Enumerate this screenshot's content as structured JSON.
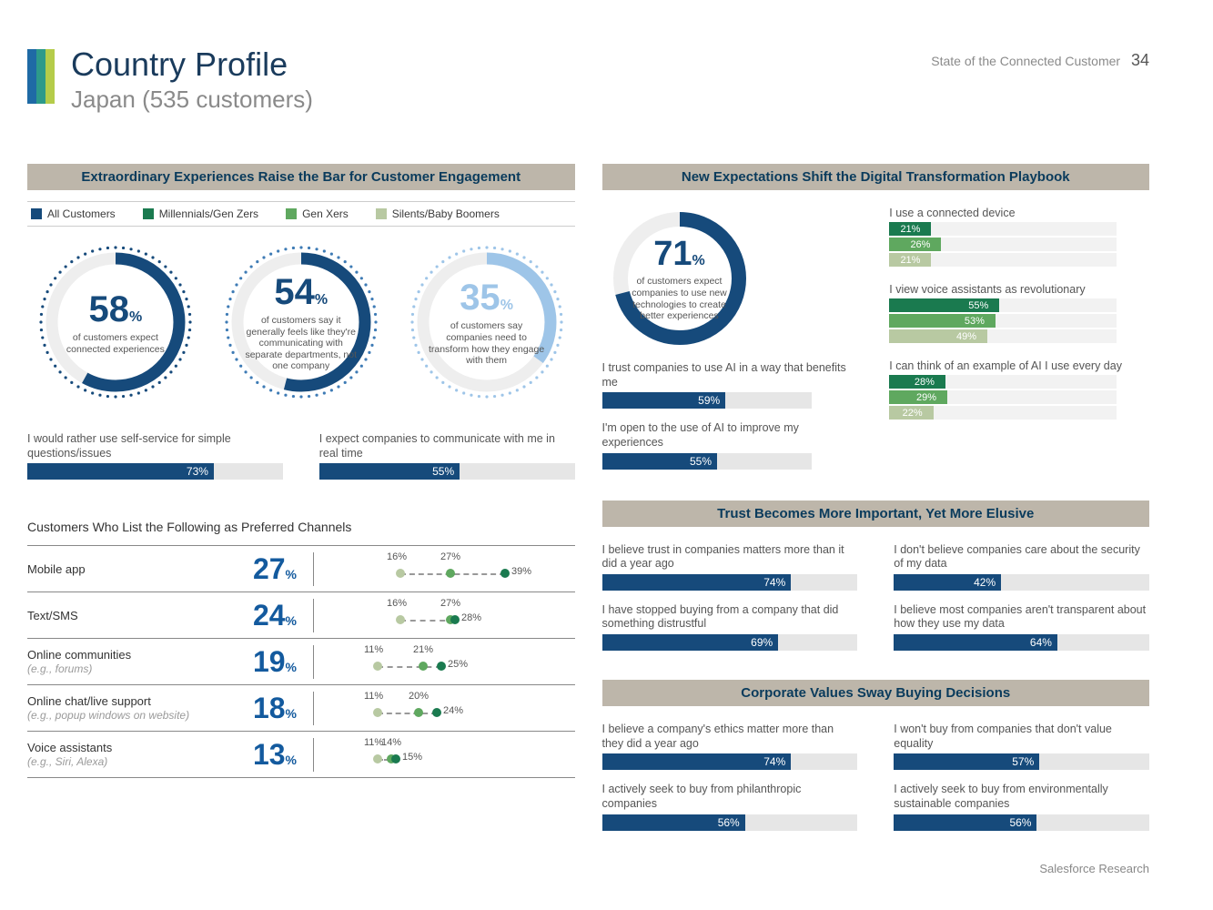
{
  "header": {
    "title": "Country Profile",
    "subtitle": "Japan (535 customers)",
    "report": "State of the Connected Customer",
    "page": "34"
  },
  "colors": {
    "all": "#164a7b",
    "millennials": "#1a7a4f",
    "genx": "#5fa85f",
    "boomers": "#b8c9a2",
    "barBlue": "#164a7b",
    "trackGray": "#e6e6e6",
    "lightBlue": "#9ec5e8",
    "ringBlue": "#164a7b"
  },
  "left": {
    "section1": "Extraordinary Experiences Raise the Bar for Customer Engagement",
    "legend": [
      {
        "label": "All Customers",
        "color": "#164a7b"
      },
      {
        "label": "Millennials/Gen Zers",
        "color": "#1a7a4f"
      },
      {
        "label": "Gen Xers",
        "color": "#5fa85f"
      },
      {
        "label": "Silents/Baby Boomers",
        "color": "#b8c9a2"
      }
    ],
    "donuts": [
      {
        "value": 58,
        "text": "of customers expect connected experiences",
        "strokeColor": "#164a7b",
        "dotColor": "#164a7b",
        "numColor": "#164a7b"
      },
      {
        "value": 54,
        "text": "of customers say it generally feels like they're communicating with separate departments, not one company",
        "strokeColor": "#164a7b",
        "dotColor": "#3e7bb5",
        "numColor": "#164a7b"
      },
      {
        "value": 35,
        "text": "of customers say companies need to transform how they engage with them",
        "strokeColor": "#9ec5e8",
        "dotColor": "#9ec5e8",
        "numColor": "#9ec5e8"
      }
    ],
    "bars2": [
      {
        "label": "I would rather use self-service for simple questions/issues",
        "value": 73
      },
      {
        "label": "I expect companies to communicate with me in real time",
        "value": 55
      }
    ],
    "channels_title": "Customers Who List the Following as Preferred Channels",
    "channels": [
      {
        "name": "Mobile app",
        "sub": "",
        "main": 27,
        "lo": 16,
        "mid": 27,
        "hi": 39
      },
      {
        "name": "Text/SMS",
        "sub": "",
        "main": 24,
        "lo": 16,
        "mid": 27,
        "hi": 28
      },
      {
        "name": "Online communities",
        "sub": "(e.g., forums)",
        "main": 19,
        "lo": 11,
        "mid": 21,
        "hi": 25
      },
      {
        "name": "Online chat/live support",
        "sub": "(e.g., popup windows on website)",
        "main": 18,
        "lo": 11,
        "mid": 20,
        "hi": 24
      },
      {
        "name": "Voice assistants",
        "sub": "(e.g., Siri, Alexa)",
        "main": 13,
        "lo": 11,
        "mid": 14,
        "hi": 15
      }
    ]
  },
  "right": {
    "section1": "New Expectations Shift the Digital Transformation Playbook",
    "ring": {
      "value": 71,
      "text": "of customers expect companies to use new technologies to create better experiences"
    },
    "multibars": [
      {
        "label": "I use a connected device",
        "vals": [
          {
            "v": 21,
            "c": "#1a7a4f"
          },
          {
            "v": 26,
            "c": "#5fa85f"
          },
          {
            "v": 21,
            "c": "#b8c9a2"
          }
        ]
      },
      {
        "label": "I view voice assistants as revolutionary",
        "vals": [
          {
            "v": 55,
            "c": "#1a7a4f"
          },
          {
            "v": 53,
            "c": "#5fa85f"
          },
          {
            "v": 49,
            "c": "#b8c9a2"
          }
        ]
      },
      {
        "label": "I can think of an example of AI I use every day",
        "vals": [
          {
            "v": 28,
            "c": "#1a7a4f"
          },
          {
            "v": 29,
            "c": "#5fa85f"
          },
          {
            "v": 22,
            "c": "#b8c9a2"
          }
        ]
      }
    ],
    "ai_bars": [
      {
        "label": "I trust companies to use AI in a way that benefits me",
        "value": 59
      },
      {
        "label": "I'm open to the use of AI to improve my experiences",
        "value": 55
      }
    ],
    "section2": "Trust Becomes More Important, Yet More Elusive",
    "trust_left": [
      {
        "label": "I believe trust in companies matters more than it did a year ago",
        "value": 74
      },
      {
        "label": "I have stopped buying from a company that did something distrustful",
        "value": 69
      }
    ],
    "trust_right": [
      {
        "label": "I don't believe companies care about the security of my data",
        "value": 42
      },
      {
        "label": "I believe most companies aren't transparent about how they use my data",
        "value": 64
      }
    ],
    "section3": "Corporate Values Sway Buying Decisions",
    "values_left": [
      {
        "label": "I believe a company's ethics matter more than they did a year ago",
        "value": 74
      },
      {
        "label": "I actively seek to buy from philanthropic companies",
        "value": 56
      }
    ],
    "values_right": [
      {
        "label": "I won't buy from companies that don't value equality",
        "value": 57
      },
      {
        "label": "I actively seek to buy from environmentally sustainable companies",
        "value": 56
      }
    ]
  },
  "footer": "Salesforce Research"
}
